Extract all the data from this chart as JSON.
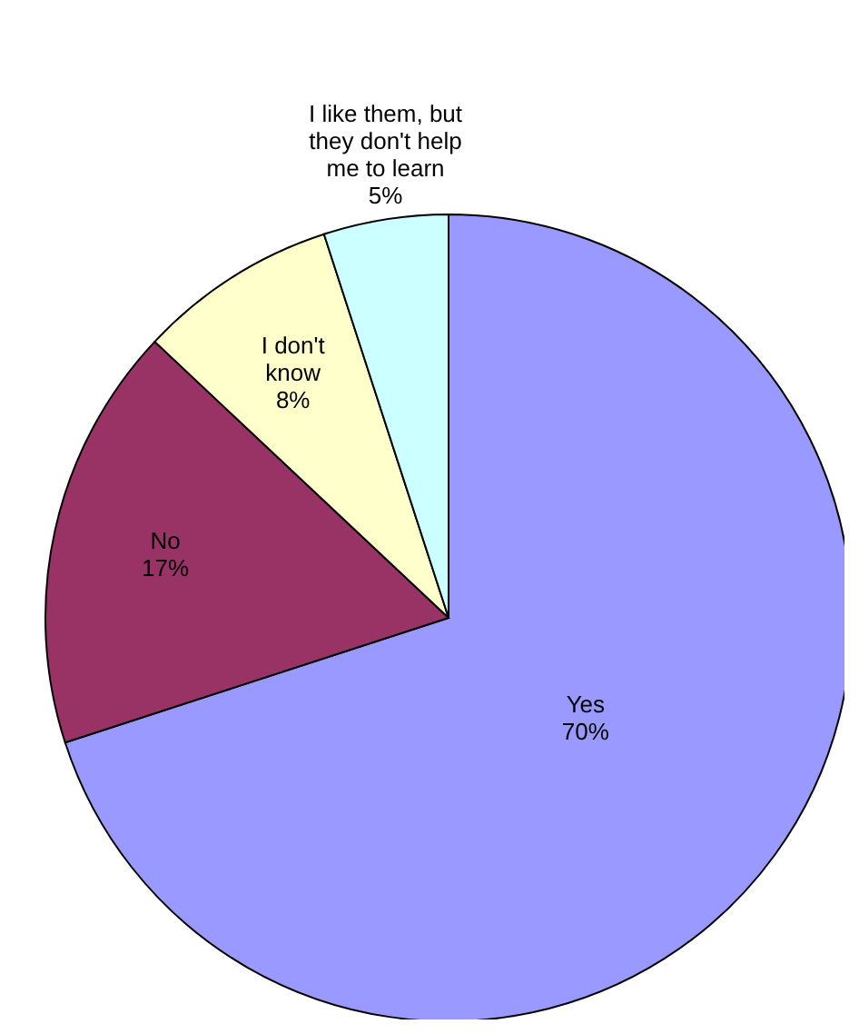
{
  "chart_data": {
    "type": "pie",
    "categories": [
      "Yes",
      "No",
      "I don't know",
      "I like them, but they don't help me to learn"
    ],
    "values": [
      70,
      17,
      8,
      5
    ],
    "value_labels": [
      "70%",
      "17%",
      "8%",
      "5%"
    ],
    "colors": [
      "#9999ff",
      "#993366",
      "#ffffcc",
      "#ccffff"
    ]
  }
}
